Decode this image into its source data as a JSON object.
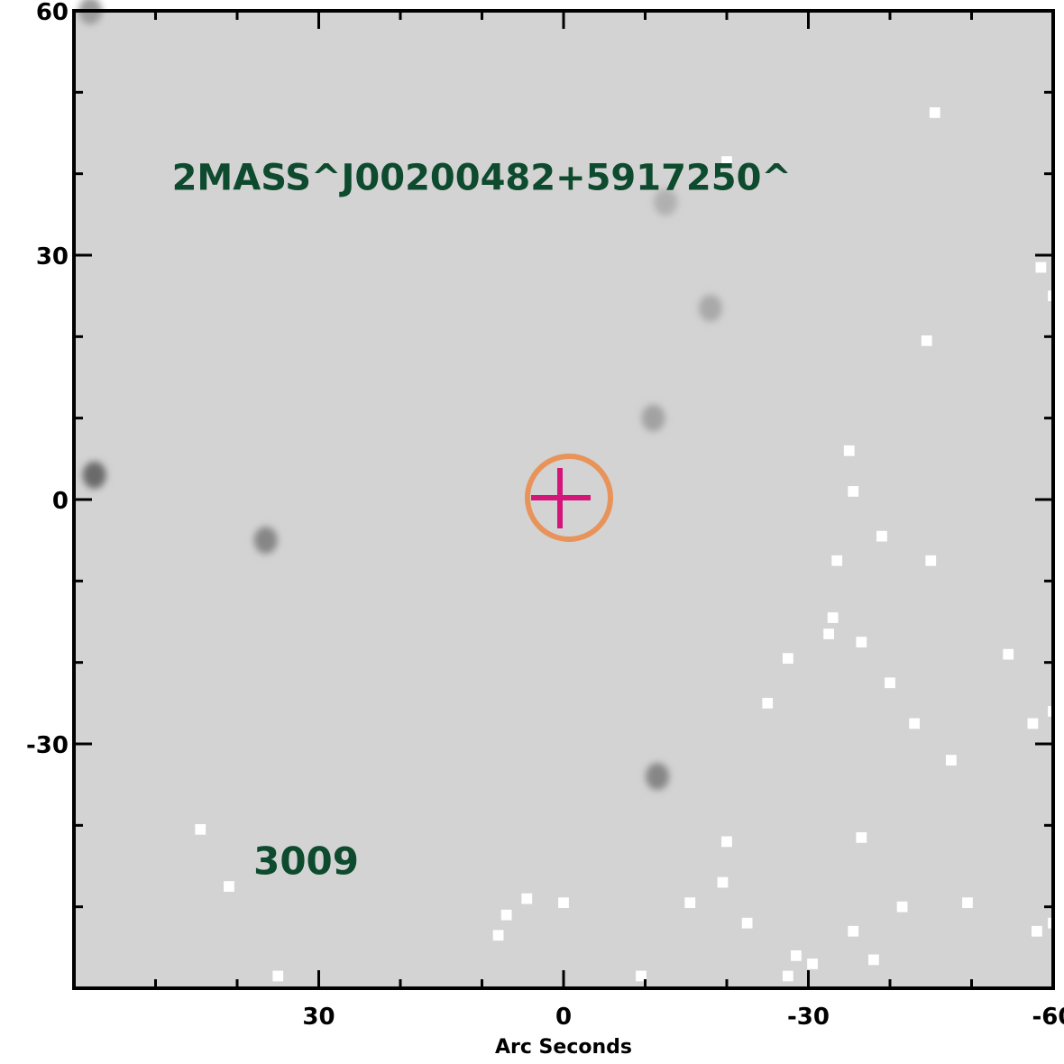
{
  "chart_data": {
    "type": "scatter",
    "title": "",
    "xlabel": "Arc Seconds",
    "ylabel": "",
    "xlim": [
      60,
      -60
    ],
    "ylim": [
      -60,
      60
    ],
    "x_ticks": [
      30,
      0,
      -30,
      -60
    ],
    "y_ticks": [
      60,
      30,
      0,
      -30
    ],
    "x_tick_labels": [
      "30",
      "0",
      "-30",
      "-60"
    ],
    "y_tick_labels": [
      "60",
      "30",
      "0",
      "-30"
    ],
    "grid": false,
    "background_color": "#d3d3d3",
    "target": {
      "x": 0,
      "y": 0,
      "marker": "crosshair-circle",
      "circle_color": "#e8935a",
      "cross_color": "#d4157a"
    },
    "annotations": [
      {
        "text": "2MASS^J00200482+5917250^",
        "x": 48,
        "y": 38,
        "color": "#0d4a2e"
      },
      {
        "text": "3009",
        "x": 38,
        "y": -46,
        "color": "#0d4a2e"
      }
    ],
    "dark_sources": [
      {
        "x": 57.5,
        "y": 3.0,
        "intensity": 0.75
      },
      {
        "x": 36.5,
        "y": -5.0,
        "intensity": 0.55
      },
      {
        "x": -11.0,
        "y": 10.0,
        "intensity": 0.35
      },
      {
        "x": -11.5,
        "y": -34.0,
        "intensity": 0.55
      },
      {
        "x": -18.0,
        "y": 23.5,
        "intensity": 0.3
      },
      {
        "x": -12.5,
        "y": 36.5,
        "intensity": 0.25
      },
      {
        "x": 58.0,
        "y": 60.0,
        "intensity": 0.4
      }
    ],
    "blank_pixels": [
      {
        "x": -20.0,
        "y": 41.5
      },
      {
        "x": -45.5,
        "y": 47.5
      },
      {
        "x": -58.5,
        "y": 28.5
      },
      {
        "x": -60.0,
        "y": 25.0
      },
      {
        "x": -44.5,
        "y": 19.5
      },
      {
        "x": -35.0,
        "y": 6.0
      },
      {
        "x": -35.5,
        "y": 1.0
      },
      {
        "x": -39.0,
        "y": -4.5
      },
      {
        "x": -45.0,
        "y": -7.5
      },
      {
        "x": -33.5,
        "y": -7.5
      },
      {
        "x": -33.0,
        "y": -14.5
      },
      {
        "x": -32.5,
        "y": -16.5
      },
      {
        "x": -36.5,
        "y": -17.5
      },
      {
        "x": -27.5,
        "y": -19.5
      },
      {
        "x": -40.0,
        "y": -22.5
      },
      {
        "x": -54.5,
        "y": -19.0
      },
      {
        "x": -25.0,
        "y": -25.0
      },
      {
        "x": -43.0,
        "y": -27.5
      },
      {
        "x": -57.5,
        "y": -27.5
      },
      {
        "x": -60.0,
        "y": -26.0
      },
      {
        "x": -47.5,
        "y": -32.0
      },
      {
        "x": -20.0,
        "y": -42.0
      },
      {
        "x": -36.5,
        "y": -41.5
      },
      {
        "x": 44.5,
        "y": -40.5
      },
      {
        "x": 41.0,
        "y": -47.5
      },
      {
        "x": 4.5,
        "y": -49.0
      },
      {
        "x": -19.5,
        "y": -47.0
      },
      {
        "x": 0.0,
        "y": -49.5
      },
      {
        "x": 8.0,
        "y": -53.5
      },
      {
        "x": 7.0,
        "y": -51.0
      },
      {
        "x": -15.5,
        "y": -49.5
      },
      {
        "x": -22.5,
        "y": -52.0
      },
      {
        "x": -28.5,
        "y": -56.0
      },
      {
        "x": -35.5,
        "y": -53.0
      },
      {
        "x": -38.0,
        "y": -56.5
      },
      {
        "x": -49.5,
        "y": -49.5
      },
      {
        "x": -41.5,
        "y": -50.0
      },
      {
        "x": -58.0,
        "y": -53.0
      },
      {
        "x": -60.0,
        "y": -52.0
      },
      {
        "x": 35.0,
        "y": -58.5
      },
      {
        "x": -9.5,
        "y": -58.5
      },
      {
        "x": -27.5,
        "y": -58.5
      },
      {
        "x": -30.5,
        "y": -57.0
      }
    ]
  }
}
